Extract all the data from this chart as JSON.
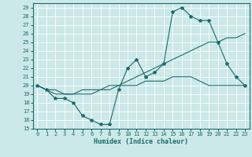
{
  "xlabel": "Humidex (Indice chaleur)",
  "bg_color": "#cce8e8",
  "line_color": "#1a6b6b",
  "xlim": [
    -0.5,
    23.5
  ],
  "ylim": [
    15,
    29.5
  ],
  "xticks": [
    0,
    1,
    2,
    3,
    4,
    5,
    6,
    7,
    8,
    9,
    10,
    11,
    12,
    13,
    14,
    15,
    16,
    17,
    18,
    19,
    20,
    21,
    22,
    23
  ],
  "yticks": [
    15,
    16,
    17,
    18,
    19,
    20,
    21,
    22,
    23,
    24,
    25,
    26,
    27,
    28,
    29
  ],
  "line1_x": [
    0,
    1,
    2,
    3,
    4,
    5,
    6,
    7,
    8,
    9,
    10,
    11,
    12,
    13,
    14,
    15,
    16,
    17,
    18,
    19,
    20,
    21,
    22,
    23
  ],
  "line1_y": [
    20,
    19.5,
    18.5,
    18.5,
    18.0,
    16.5,
    16.0,
    15.5,
    15.5,
    19.5,
    22.0,
    23.0,
    21.0,
    21.5,
    22.5,
    28.5,
    29.0,
    28.0,
    27.5,
    27.5,
    25.0,
    22.5,
    21.0,
    20.0
  ],
  "line2_x": [
    0,
    1,
    2,
    3,
    4,
    5,
    6,
    7,
    8,
    9,
    10,
    11,
    12,
    13,
    14,
    15,
    16,
    17,
    18,
    19,
    20,
    21,
    22,
    23
  ],
  "line2_y": [
    20.0,
    19.5,
    19.0,
    19.0,
    19.0,
    19.0,
    19.0,
    19.5,
    19.5,
    20.0,
    20.5,
    21.0,
    21.5,
    22.0,
    22.5,
    23.0,
    23.5,
    24.0,
    24.5,
    25.0,
    25.0,
    25.5,
    25.5,
    26.0
  ],
  "line3_x": [
    0,
    1,
    2,
    3,
    4,
    5,
    6,
    7,
    8,
    9,
    10,
    11,
    12,
    13,
    14,
    15,
    16,
    17,
    18,
    19,
    20,
    21,
    22,
    23
  ],
  "line3_y": [
    20.0,
    19.5,
    19.5,
    19.0,
    19.0,
    19.5,
    19.5,
    19.5,
    20.0,
    20.0,
    20.0,
    20.0,
    20.5,
    20.5,
    20.5,
    21.0,
    21.0,
    21.0,
    20.5,
    20.0,
    20.0,
    20.0,
    20.0,
    20.0
  ],
  "tick_fontsize": 5,
  "xlabel_fontsize": 6
}
